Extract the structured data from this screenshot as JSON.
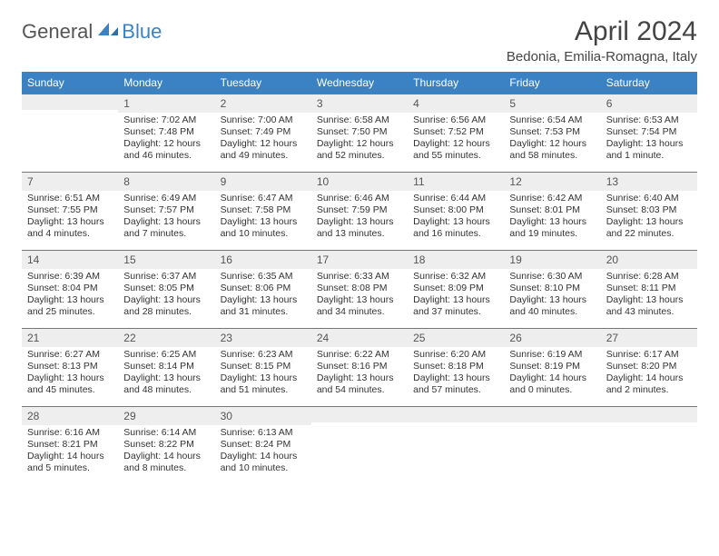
{
  "logo": {
    "part1": "General",
    "part2": "Blue"
  },
  "title": "April 2024",
  "location": "Bedonia, Emilia-Romagna, Italy",
  "colors": {
    "header_bg": "#3a82c4",
    "header_fg": "#ffffff",
    "daynum_bg": "#eeeeee",
    "rule": "#777777",
    "text": "#333333",
    "logo_gray": "#555555",
    "logo_blue": "#3a82c4"
  },
  "weekdays": [
    "Sunday",
    "Monday",
    "Tuesday",
    "Wednesday",
    "Thursday",
    "Friday",
    "Saturday"
  ],
  "grid": [
    [
      null,
      {
        "n": "1",
        "sunrise": "7:02 AM",
        "sunset": "7:48 PM",
        "daylight": "12 hours and 46 minutes."
      },
      {
        "n": "2",
        "sunrise": "7:00 AM",
        "sunset": "7:49 PM",
        "daylight": "12 hours and 49 minutes."
      },
      {
        "n": "3",
        "sunrise": "6:58 AM",
        "sunset": "7:50 PM",
        "daylight": "12 hours and 52 minutes."
      },
      {
        "n": "4",
        "sunrise": "6:56 AM",
        "sunset": "7:52 PM",
        "daylight": "12 hours and 55 minutes."
      },
      {
        "n": "5",
        "sunrise": "6:54 AM",
        "sunset": "7:53 PM",
        "daylight": "12 hours and 58 minutes."
      },
      {
        "n": "6",
        "sunrise": "6:53 AM",
        "sunset": "7:54 PM",
        "daylight": "13 hours and 1 minute."
      }
    ],
    [
      {
        "n": "7",
        "sunrise": "6:51 AM",
        "sunset": "7:55 PM",
        "daylight": "13 hours and 4 minutes."
      },
      {
        "n": "8",
        "sunrise": "6:49 AM",
        "sunset": "7:57 PM",
        "daylight": "13 hours and 7 minutes."
      },
      {
        "n": "9",
        "sunrise": "6:47 AM",
        "sunset": "7:58 PM",
        "daylight": "13 hours and 10 minutes."
      },
      {
        "n": "10",
        "sunrise": "6:46 AM",
        "sunset": "7:59 PM",
        "daylight": "13 hours and 13 minutes."
      },
      {
        "n": "11",
        "sunrise": "6:44 AM",
        "sunset": "8:00 PM",
        "daylight": "13 hours and 16 minutes."
      },
      {
        "n": "12",
        "sunrise": "6:42 AM",
        "sunset": "8:01 PM",
        "daylight": "13 hours and 19 minutes."
      },
      {
        "n": "13",
        "sunrise": "6:40 AM",
        "sunset": "8:03 PM",
        "daylight": "13 hours and 22 minutes."
      }
    ],
    [
      {
        "n": "14",
        "sunrise": "6:39 AM",
        "sunset": "8:04 PM",
        "daylight": "13 hours and 25 minutes."
      },
      {
        "n": "15",
        "sunrise": "6:37 AM",
        "sunset": "8:05 PM",
        "daylight": "13 hours and 28 minutes."
      },
      {
        "n": "16",
        "sunrise": "6:35 AM",
        "sunset": "8:06 PM",
        "daylight": "13 hours and 31 minutes."
      },
      {
        "n": "17",
        "sunrise": "6:33 AM",
        "sunset": "8:08 PM",
        "daylight": "13 hours and 34 minutes."
      },
      {
        "n": "18",
        "sunrise": "6:32 AM",
        "sunset": "8:09 PM",
        "daylight": "13 hours and 37 minutes."
      },
      {
        "n": "19",
        "sunrise": "6:30 AM",
        "sunset": "8:10 PM",
        "daylight": "13 hours and 40 minutes."
      },
      {
        "n": "20",
        "sunrise": "6:28 AM",
        "sunset": "8:11 PM",
        "daylight": "13 hours and 43 minutes."
      }
    ],
    [
      {
        "n": "21",
        "sunrise": "6:27 AM",
        "sunset": "8:13 PM",
        "daylight": "13 hours and 45 minutes."
      },
      {
        "n": "22",
        "sunrise": "6:25 AM",
        "sunset": "8:14 PM",
        "daylight": "13 hours and 48 minutes."
      },
      {
        "n": "23",
        "sunrise": "6:23 AM",
        "sunset": "8:15 PM",
        "daylight": "13 hours and 51 minutes."
      },
      {
        "n": "24",
        "sunrise": "6:22 AM",
        "sunset": "8:16 PM",
        "daylight": "13 hours and 54 minutes."
      },
      {
        "n": "25",
        "sunrise": "6:20 AM",
        "sunset": "8:18 PM",
        "daylight": "13 hours and 57 minutes."
      },
      {
        "n": "26",
        "sunrise": "6:19 AM",
        "sunset": "8:19 PM",
        "daylight": "14 hours and 0 minutes."
      },
      {
        "n": "27",
        "sunrise": "6:17 AM",
        "sunset": "8:20 PM",
        "daylight": "14 hours and 2 minutes."
      }
    ],
    [
      {
        "n": "28",
        "sunrise": "6:16 AM",
        "sunset": "8:21 PM",
        "daylight": "14 hours and 5 minutes."
      },
      {
        "n": "29",
        "sunrise": "6:14 AM",
        "sunset": "8:22 PM",
        "daylight": "14 hours and 8 minutes."
      },
      {
        "n": "30",
        "sunrise": "6:13 AM",
        "sunset": "8:24 PM",
        "daylight": "14 hours and 10 minutes."
      },
      null,
      null,
      null,
      null
    ]
  ],
  "labels": {
    "sunrise": "Sunrise:",
    "sunset": "Sunset:",
    "daylight": "Daylight:"
  }
}
